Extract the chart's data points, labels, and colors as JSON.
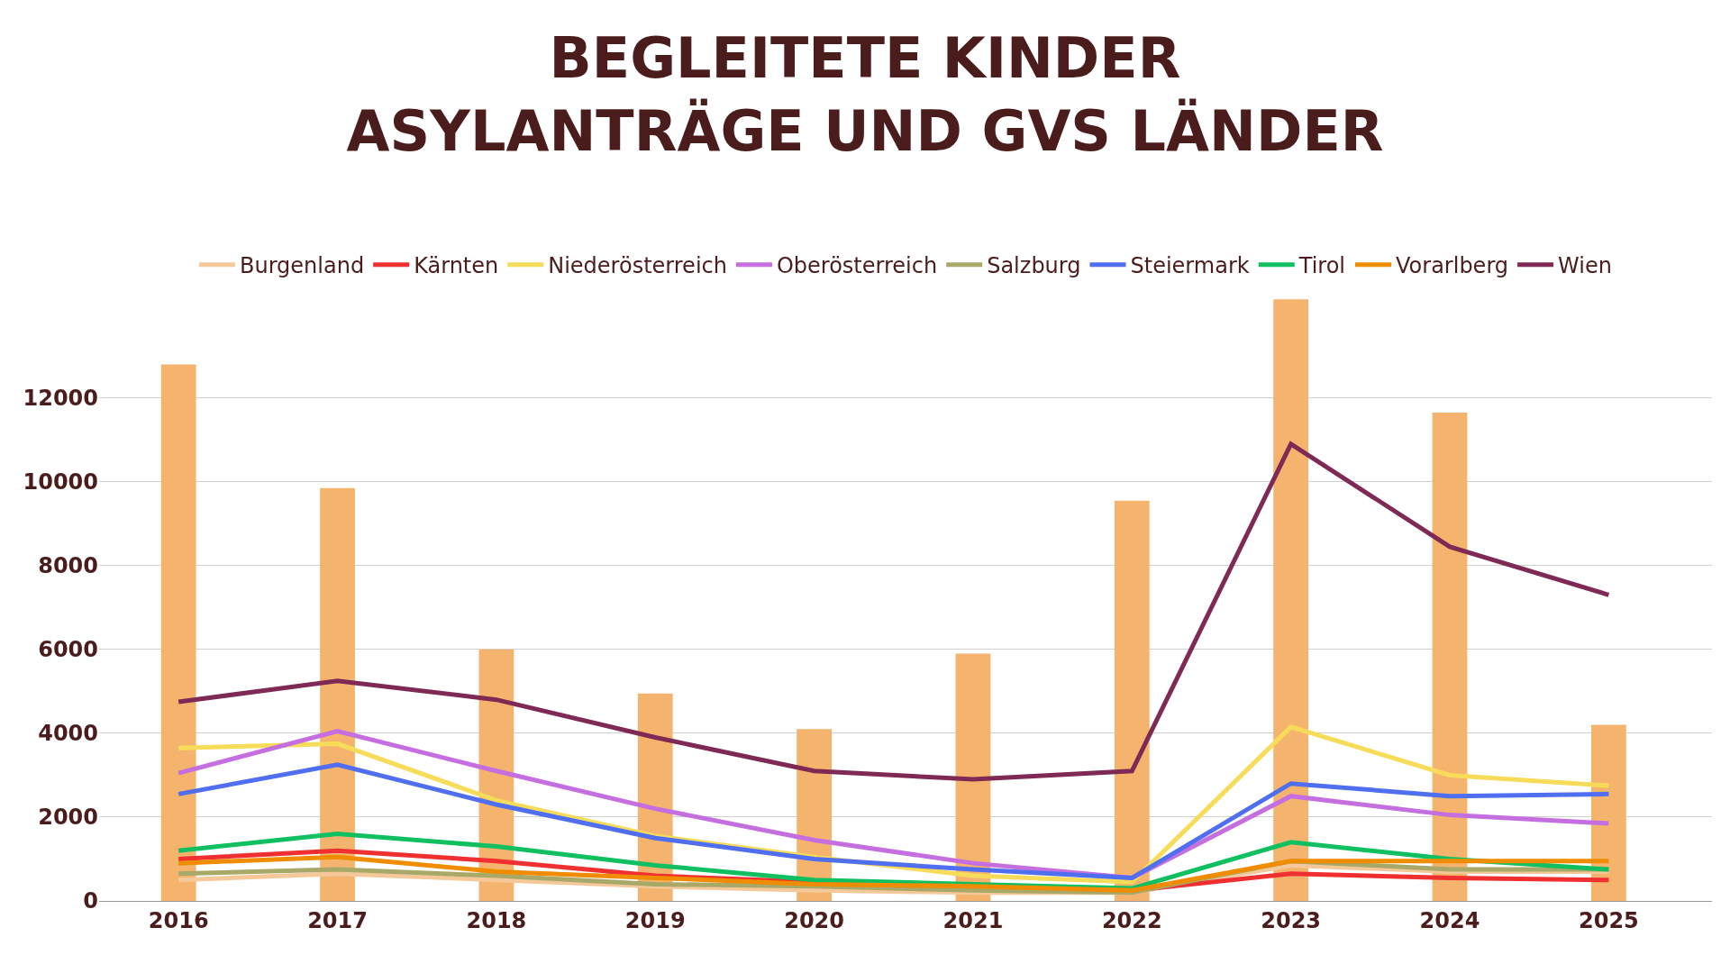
{
  "chart_data": {
    "type": "line",
    "title": "BEGLEITETE KINDER\nASYLANTRÄGE UND GVS LÄNDER",
    "categories": [
      "2016",
      "2017",
      "2018",
      "2019",
      "2020",
      "2021",
      "2022",
      "2023",
      "2024",
      "2025"
    ],
    "ylim": [
      0,
      14400
    ],
    "yticks": [
      0,
      2000,
      4000,
      6000,
      8000,
      10000,
      12000
    ],
    "grid": "y",
    "legend": "top",
    "marker": "none",
    "line_style": "solid",
    "series": [
      {
        "type": "bar",
        "color": "#f5b46e",
        "values": [
          12800,
          9850,
          6000,
          4950,
          4100,
          5900,
          9550,
          14350,
          11650,
          4200
        ]
      },
      {
        "name": "Burgenland",
        "color": "#f5c89a",
        "values": [
          500,
          650,
          500,
          350,
          250,
          200,
          200,
          850,
          700,
          700
        ]
      },
      {
        "name": "Kärnten",
        "color": "#f03030",
        "values": [
          1000,
          1200,
          950,
          600,
          450,
          350,
          250,
          650,
          550,
          500
        ]
      },
      {
        "name": "Niederösterreich",
        "color": "#f7dc5a",
        "values": [
          3650,
          3750,
          2400,
          1550,
          1050,
          600,
          450,
          4150,
          3000,
          2750
        ]
      },
      {
        "name": "Oberösterreich",
        "color": "#c46ee0",
        "values": [
          3050,
          4050,
          3100,
          2200,
          1450,
          900,
          550,
          2500,
          2050,
          1850
        ]
      },
      {
        "name": "Salzburg",
        "color": "#a8a868",
        "values": [
          650,
          750,
          600,
          400,
          350,
          250,
          200,
          950,
          750,
          750
        ]
      },
      {
        "name": "Steiermark",
        "color": "#4f6ef0",
        "values": [
          2550,
          3250,
          2300,
          1500,
          1000,
          750,
          550,
          2800,
          2500,
          2550
        ]
      },
      {
        "name": "Tirol",
        "color": "#10c060",
        "values": [
          1200,
          1600,
          1300,
          850,
          500,
          400,
          300,
          1400,
          1000,
          750
        ]
      },
      {
        "name": "Vorarlberg",
        "color": "#ef8c00",
        "values": [
          900,
          1050,
          700,
          550,
          400,
          350,
          250,
          950,
          950,
          950
        ]
      },
      {
        "name": "Wien",
        "color": "#7e2a55",
        "values": [
          4750,
          5250,
          4800,
          3900,
          3100,
          2900,
          3100,
          10900,
          8450,
          7300
        ]
      }
    ]
  }
}
